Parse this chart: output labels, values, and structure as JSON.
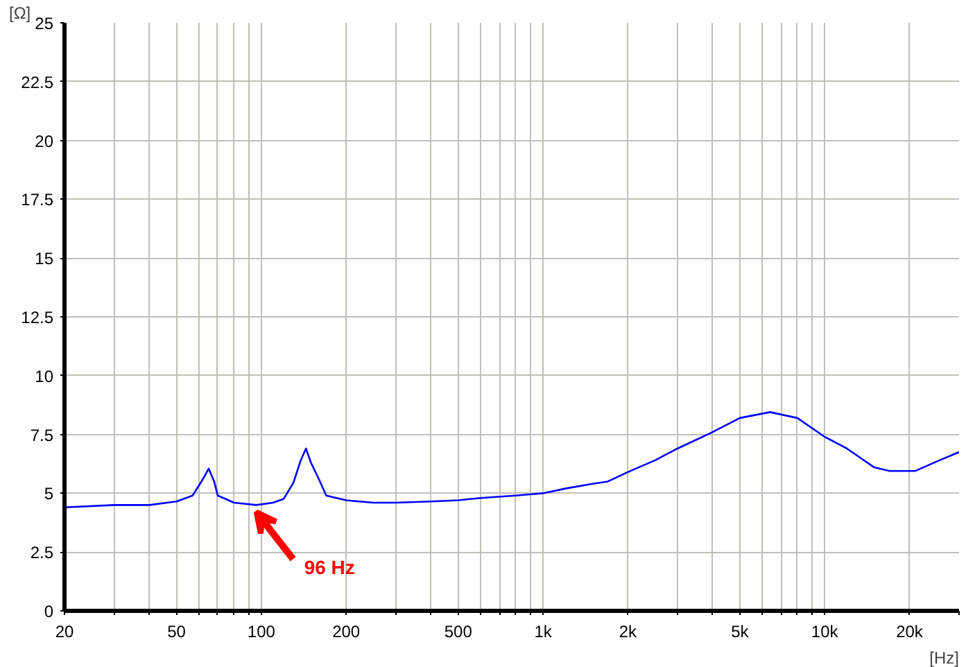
{
  "chart_data": {
    "type": "line",
    "xlabel": "[Hz]",
    "ylabel": "[Ω]",
    "log": "x",
    "grid": true,
    "marker": "none",
    "line_style": "solid",
    "xlim": [
      20,
      30000
    ],
    "ylim": [
      0,
      25
    ],
    "xticks": [
      20,
      {
        "value": 30,
        "label": null
      },
      {
        "value": 40,
        "label": null
      },
      50,
      {
        "value": 60,
        "label": null
      },
      {
        "value": 70,
        "label": null
      },
      {
        "value": 80,
        "label": null
      },
      {
        "value": 90,
        "label": null
      },
      100,
      200,
      {
        "value": 300,
        "label": null
      },
      {
        "value": 400,
        "label": null
      },
      500,
      {
        "value": 600,
        "label": null
      },
      {
        "value": 700,
        "label": null
      },
      {
        "value": 800,
        "label": null
      },
      {
        "value": 900,
        "label": null
      },
      {
        "value": 1000,
        "label": "1k"
      },
      {
        "value": 2000,
        "label": "2k"
      },
      {
        "value": 3000,
        "label": null
      },
      {
        "value": 4000,
        "label": null
      },
      {
        "value": 5000,
        "label": "5k"
      },
      {
        "value": 6000,
        "label": null
      },
      {
        "value": 7000,
        "label": null
      },
      {
        "value": 8000,
        "label": null
      },
      {
        "value": 9000,
        "label": null
      },
      {
        "value": 10000,
        "label": "10k"
      },
      {
        "value": 20000,
        "label": "20k"
      },
      {
        "value": 30000,
        "label": null
      }
    ],
    "yticks": [
      0,
      2.5,
      5,
      7.5,
      10,
      12.5,
      15,
      17.5,
      20,
      22.5,
      25
    ],
    "series": [
      {
        "color": "#0000ff",
        "x": [
          20,
          30,
          40,
          50,
          57,
          62,
          65,
          68,
          70,
          80,
          96,
          110,
          120,
          130,
          138,
          144,
          150,
          160,
          170,
          200,
          250,
          300,
          400,
          500,
          600,
          800,
          1000,
          1200,
          1500,
          1700,
          2000,
          2500,
          3000,
          4000,
          5000,
          6400,
          8000,
          10000,
          12000,
          15000,
          17000,
          21000,
          25000,
          30000
        ],
        "values": [
          4.4,
          4.5,
          4.5,
          4.65,
          4.9,
          5.6,
          6.05,
          5.5,
          4.9,
          4.6,
          4.5,
          4.6,
          4.76,
          5.45,
          6.4,
          6.9,
          6.3,
          5.6,
          4.9,
          4.7,
          4.6,
          4.6,
          4.65,
          4.7,
          4.8,
          4.9,
          5.0,
          5.2,
          5.4,
          5.5,
          5.9,
          6.4,
          6.9,
          7.6,
          8.2,
          8.45,
          8.2,
          7.4,
          6.9,
          6.1,
          5.95,
          5.95,
          6.35,
          6.75
        ]
      }
    ],
    "annotations": [
      {
        "text": "96 Hz",
        "x": 96,
        "y": 4.5
      }
    ]
  }
}
